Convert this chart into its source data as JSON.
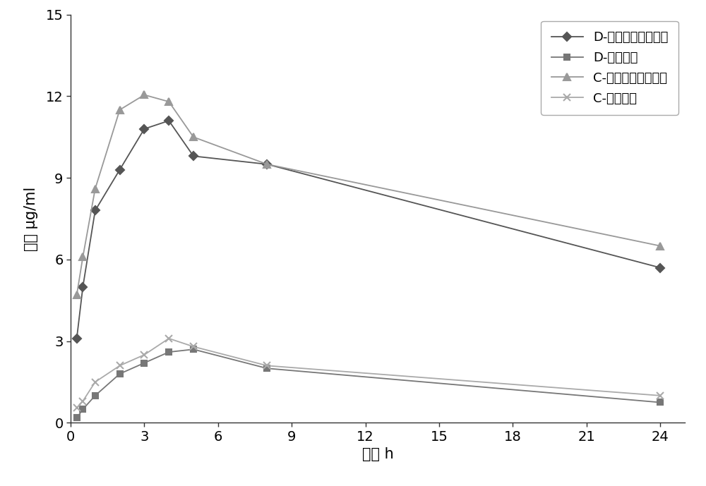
{
  "series": [
    {
      "label": "D-磺胺间甲氧噇啊钒",
      "x": [
        0.25,
        0.5,
        1,
        2,
        3,
        4,
        5,
        8,
        24
      ],
      "y": [
        3.1,
        5.0,
        7.8,
        9.3,
        10.8,
        11.1,
        9.8,
        9.5,
        5.7
      ],
      "color": "#555555",
      "marker": "D",
      "markersize": 6,
      "linestyle": "-",
      "linewidth": 1.3
    },
    {
      "label": "D-甲氧苄啊",
      "x": [
        0.25,
        0.5,
        1,
        2,
        3,
        4,
        5,
        8,
        24
      ],
      "y": [
        0.18,
        0.5,
        1.0,
        1.8,
        2.2,
        2.6,
        2.7,
        2.0,
        0.75
      ],
      "color": "#777777",
      "marker": "s",
      "markersize": 6,
      "linestyle": "-",
      "linewidth": 1.3
    },
    {
      "label": "C-磺胺间甲氧噇啊钒",
      "x": [
        0.25,
        0.5,
        1,
        2,
        3,
        4,
        5,
        8,
        24
      ],
      "y": [
        4.7,
        6.1,
        8.6,
        11.5,
        12.05,
        11.8,
        10.5,
        9.5,
        6.5
      ],
      "color": "#999999",
      "marker": "^",
      "markersize": 7,
      "linestyle": "-",
      "linewidth": 1.3
    },
    {
      "label": "C-甲氧苄啊",
      "x": [
        0.25,
        0.5,
        1,
        2,
        3,
        4,
        5,
        8,
        24
      ],
      "y": [
        0.55,
        0.8,
        1.5,
        2.1,
        2.5,
        3.1,
        2.8,
        2.1,
        1.0
      ],
      "color": "#aaaaaa",
      "marker": "x",
      "markersize": 7,
      "linestyle": "-",
      "linewidth": 1.3
    }
  ],
  "xlabel": "时间 h",
  "ylabel": "浓度 μg/ml",
  "xlim": [
    0,
    25
  ],
  "ylim": [
    0,
    15
  ],
  "xticks": [
    0,
    3,
    6,
    9,
    12,
    15,
    18,
    21,
    24
  ],
  "yticks": [
    0,
    3,
    6,
    9,
    12,
    15
  ],
  "xtick_labels": [
    "0",
    "3",
    "6",
    "9",
    "12",
    "15",
    "18",
    "21",
    "24"
  ],
  "ytick_labels": [
    "0",
    "3",
    "6",
    "9",
    "12",
    "15"
  ],
  "background_color": "#ffffff",
  "legend_loc": "upper right",
  "fontsize_label": 15,
  "fontsize_tick": 14,
  "fontsize_legend": 13
}
